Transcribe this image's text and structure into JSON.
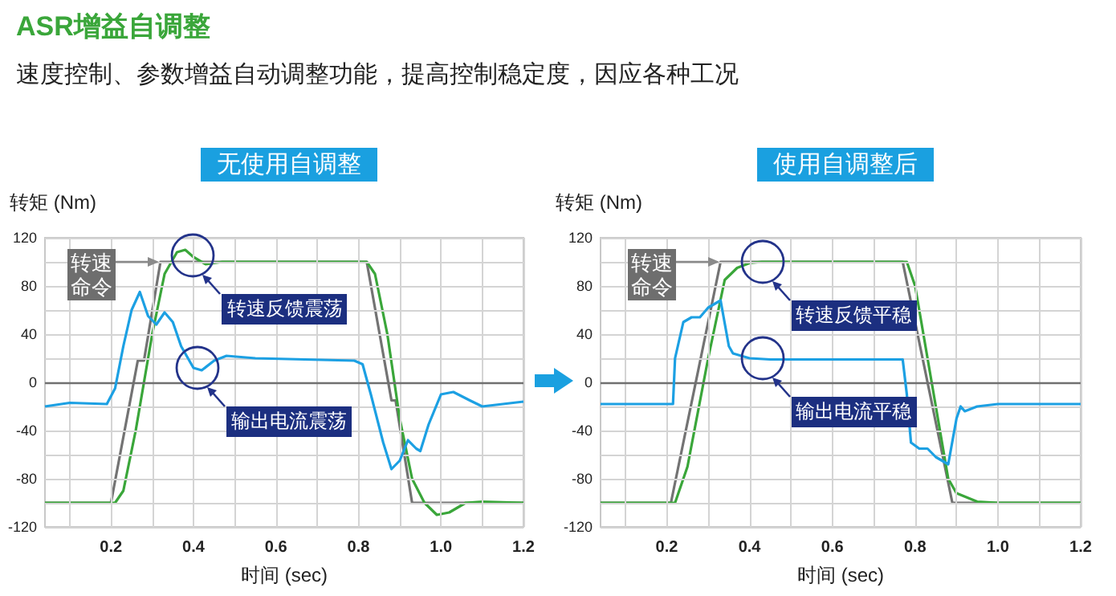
{
  "chart_data": [
    {
      "type": "line",
      "title": "无使用自调整",
      "xlabel": "时间 (sec)",
      "ylabel": "转矩 (Nm)",
      "xlim": [
        0.04,
        1.2
      ],
      "ylim": [
        -120,
        120
      ],
      "xticks": [
        {
          "value": 0.1,
          "label": null
        },
        0.2,
        {
          "value": 0.3,
          "label": null
        },
        0.4,
        {
          "value": 0.5,
          "label": null
        },
        0.6,
        {
          "value": 0.7,
          "label": null
        },
        0.8,
        {
          "value": 0.9,
          "label": null
        },
        {
          "value": 1,
          "label": "1.0"
        },
        {
          "value": 1.1,
          "label": null
        },
        1.2
      ],
      "yticks": [
        -120,
        {
          "value": -100,
          "label": null
        },
        -80,
        {
          "value": -60,
          "label": null
        },
        -40,
        {
          "value": -20,
          "label": null
        },
        0,
        {
          "value": 20,
          "label": null
        },
        40,
        {
          "value": 60,
          "label": null
        },
        80,
        {
          "value": 100,
          "label": null
        },
        120
      ],
      "grid": true,
      "marker": "none",
      "ref_lines": [
        {
          "axis": "y",
          "value": 0,
          "color": "#707070"
        }
      ],
      "series": [
        {
          "color": "#737373",
          "x": [
            0.04,
            0.2,
            0.265,
            0.28,
            0.32,
            0.82,
            0.88,
            0.89,
            0.93,
            1.2
          ],
          "values": [
            -100,
            -100,
            18,
            18,
            100,
            100,
            -15,
            -15,
            -100,
            -100
          ]
        },
        {
          "color": "#3aa63a",
          "x": [
            0.04,
            0.21,
            0.23,
            0.26,
            0.3,
            0.33,
            0.36,
            0.38,
            0.4,
            0.43,
            0.47,
            0.82,
            0.84,
            0.87,
            0.9,
            0.93,
            0.96,
            0.99,
            1.02,
            1.06,
            1.1,
            1.2
          ],
          "values": [
            -100,
            -100,
            -90,
            -40,
            40,
            90,
            108,
            110,
            104,
            98,
            100,
            100,
            90,
            40,
            -30,
            -80,
            -100,
            -110,
            -108,
            -100,
            -99,
            -100
          ]
        },
        {
          "color": "#1ca0e3",
          "x": [
            0.04,
            0.1,
            0.19,
            0.21,
            0.23,
            0.25,
            0.27,
            0.29,
            0.31,
            0.33,
            0.35,
            0.37,
            0.4,
            0.42,
            0.45,
            0.48,
            0.55,
            0.79,
            0.81,
            0.83,
            0.86,
            0.88,
            0.9,
            0.92,
            0.94,
            0.95,
            0.97,
            1.0,
            1.03,
            1.07,
            1.1,
            1.15,
            1.2
          ],
          "values": [
            -20,
            -17,
            -18,
            -5,
            30,
            60,
            75,
            55,
            48,
            58,
            50,
            30,
            12,
            10,
            18,
            22,
            20,
            18,
            15,
            -10,
            -50,
            -72,
            -65,
            -48,
            -55,
            -57,
            -35,
            -10,
            -8,
            -15,
            -20,
            -18,
            -16
          ]
        }
      ],
      "annotations": [
        "ASR增益自调整",
        "速度控制、参数增益自动调整功能，提高控制稳定度，因应各种工况",
        {
          "text": "转速命令",
          "x": 0.32,
          "y": 100
        },
        {
          "text": "转速反馈震荡",
          "x": 0.4,
          "y": 105
        },
        {
          "text": "输出电流震荡",
          "x": 0.41,
          "y": 12
        }
      ]
    },
    {
      "type": "line",
      "title": "使用自调整后",
      "xlabel": "时间 (sec)",
      "ylabel": "转矩 (Nm)",
      "xlim": [
        0.04,
        1.2
      ],
      "ylim": [
        -120,
        120
      ],
      "xticks": [
        {
          "value": 0.1,
          "label": null
        },
        0.2,
        {
          "value": 0.3,
          "label": null
        },
        0.4,
        {
          "value": 0.5,
          "label": null
        },
        0.6,
        {
          "value": 0.7,
          "label": null
        },
        0.8,
        {
          "value": 0.9,
          "label": null
        },
        {
          "value": 1,
          "label": "1.0"
        },
        {
          "value": 1.1,
          "label": null
        },
        1.2
      ],
      "yticks": [
        -120,
        {
          "value": -100,
          "label": null
        },
        -80,
        {
          "value": -60,
          "label": null
        },
        -40,
        {
          "value": -20,
          "label": null
        },
        0,
        {
          "value": 20,
          "label": null
        },
        40,
        {
          "value": 60,
          "label": null
        },
        80,
        {
          "value": 100,
          "label": null
        },
        120
      ],
      "grid": true,
      "marker": "none",
      "ref_lines": [
        {
          "axis": "y",
          "value": 0,
          "color": "#707070"
        }
      ],
      "series": [
        {
          "color": "#737373",
          "x": [
            0.04,
            0.21,
            0.33,
            0.77,
            0.89,
            1.2
          ],
          "values": [
            -100,
            -100,
            100,
            100,
            -100,
            -100
          ]
        },
        {
          "color": "#3aa63a",
          "x": [
            0.04,
            0.22,
            0.25,
            0.3,
            0.34,
            0.37,
            0.4,
            0.43,
            0.78,
            0.8,
            0.85,
            0.88,
            0.9,
            0.95,
            1.0,
            1.2
          ],
          "values": [
            -100,
            -100,
            -70,
            20,
            85,
            95,
            99,
            100,
            100,
            80,
            -20,
            -80,
            -92,
            -99,
            -100,
            -100
          ]
        },
        {
          "color": "#1ca0e3",
          "x": [
            0.04,
            0.215,
            0.22,
            0.24,
            0.26,
            0.28,
            0.3,
            0.33,
            0.35,
            0.36,
            0.4,
            0.45,
            0.77,
            0.78,
            0.79,
            0.81,
            0.83,
            0.85,
            0.88,
            0.9,
            0.91,
            0.92,
            0.95,
            1.0,
            1.2
          ],
          "values": [
            -18,
            -18,
            20,
            50,
            54,
            54,
            62,
            68,
            30,
            24,
            20,
            19,
            19,
            -10,
            -50,
            -55,
            -55,
            -62,
            -68,
            -30,
            -20,
            -24,
            -20,
            -18,
            -18
          ]
        }
      ],
      "annotations": [
        {
          "text": "转速命令",
          "x": 0.33,
          "y": 100
        },
        {
          "text": "转速反馈平稳",
          "x": 0.43,
          "y": 100
        },
        {
          "text": "输出电流平稳",
          "x": 0.43,
          "y": 20
        }
      ]
    }
  ]
}
